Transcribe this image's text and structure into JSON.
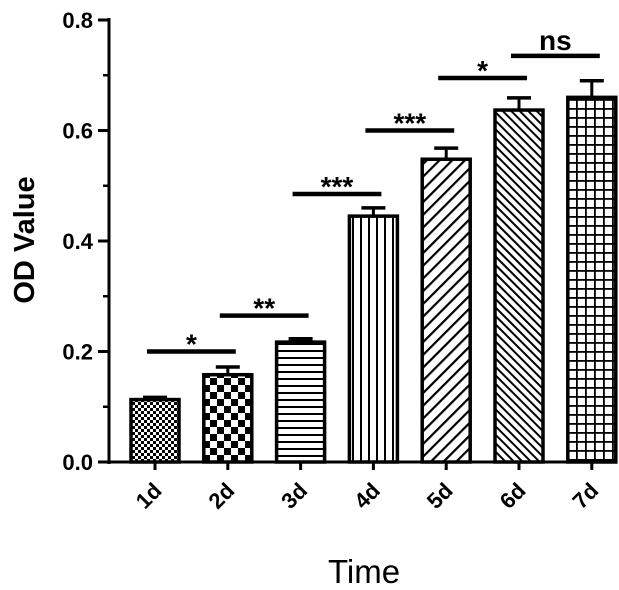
{
  "chart_data": {
    "type": "bar",
    "title": "",
    "xlabel": "Time",
    "ylabel": "OD Value",
    "categories": [
      "1d",
      "2d",
      "3d",
      "4d",
      "5d",
      "6d",
      "7d"
    ],
    "values": [
      0.113,
      0.158,
      0.217,
      0.445,
      0.548,
      0.637,
      0.66
    ],
    "errors": [
      0.004,
      0.014,
      0.006,
      0.015,
      0.02,
      0.022,
      0.03
    ],
    "patterns": [
      "fine-checker",
      "coarse-checker",
      "horizontal-lines",
      "vertical-lines",
      "diagonal-lines",
      "dense-diagonal-lines",
      "grid"
    ],
    "ylim": [
      0,
      0.8
    ],
    "yticks": [
      "0.0",
      "0.2",
      "0.4",
      "0.6",
      "0.8"
    ],
    "grid": false,
    "legend": "none",
    "significance": [
      {
        "from": 0,
        "to": 1,
        "label": "*",
        "y": 0.2
      },
      {
        "from": 1,
        "to": 2,
        "label": "**",
        "y": 0.265
      },
      {
        "from": 2,
        "to": 3,
        "label": "***",
        "y": 0.485
      },
      {
        "from": 3,
        "to": 4,
        "label": "***",
        "y": 0.6
      },
      {
        "from": 4,
        "to": 5,
        "label": "*",
        "y": 0.695
      },
      {
        "from": 5,
        "to": 6,
        "label": "ns",
        "y": 0.735
      }
    ]
  }
}
